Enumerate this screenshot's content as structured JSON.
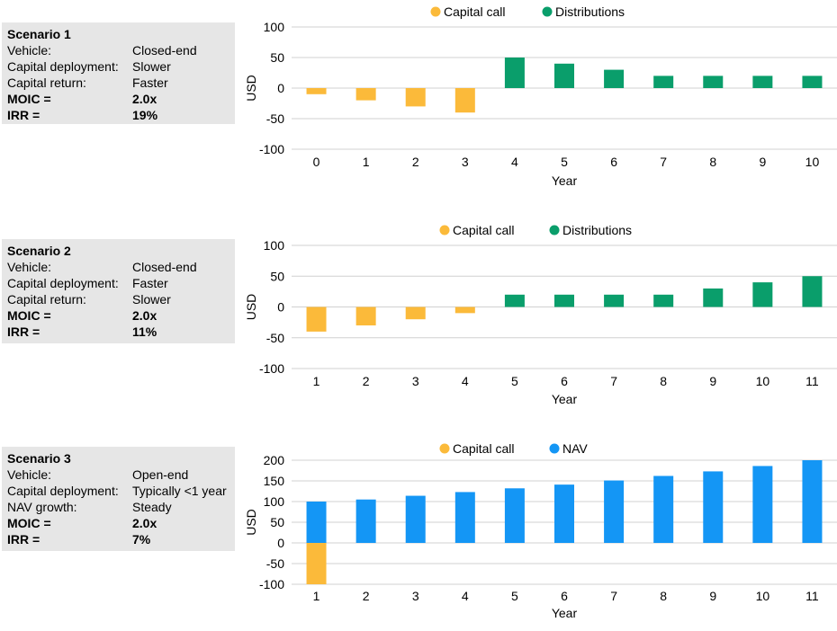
{
  "colors": {
    "capital_call": "#FBBA3A",
    "distributions": "#0A9E6B",
    "nav": "#1496F5",
    "panel_bg": "#E6E6E6"
  },
  "scenarios": [
    {
      "title": "Scenario 1",
      "rows": [
        {
          "k": "Vehicle:",
          "v": "Closed-end"
        },
        {
          "k": "Capital deployment:",
          "v": "Slower"
        },
        {
          "k": "Capital return:",
          "v": "Faster"
        }
      ],
      "moic_label": "MOIC =",
      "moic": "2.0x",
      "irr_label": "IRR =",
      "irr": "19%"
    },
    {
      "title": "Scenario 2",
      "rows": [
        {
          "k": "Vehicle:",
          "v": "Closed-end"
        },
        {
          "k": "Capital deployment:",
          "v": "Faster"
        },
        {
          "k": "Capital return:",
          "v": "Slower"
        }
      ],
      "moic_label": "MOIC =",
      "moic": "2.0x",
      "irr_label": "IRR =",
      "irr": "11%"
    },
    {
      "title": "Scenario 3",
      "rows": [
        {
          "k": "Vehicle:",
          "v": "Open-end"
        },
        {
          "k": "Capital deployment:",
          "v": "Typically <1 year"
        },
        {
          "k": "NAV growth:",
          "v": "Steady"
        }
      ],
      "moic_label": "MOIC =",
      "moic": "2.0x",
      "irr_label": "IRR =",
      "irr": "7%"
    }
  ],
  "chart_data": [
    {
      "type": "bar",
      "xlabel": "Year",
      "ylabel": "USD",
      "ylim": [
        -100,
        100
      ],
      "yticks": [
        100,
        50,
        0,
        -50,
        -100
      ],
      "categories": [
        "0",
        "1",
        "2",
        "3",
        "4",
        "5",
        "6",
        "7",
        "8",
        "9",
        "10"
      ],
      "legend_position": "top",
      "series": [
        {
          "name": "Capital call",
          "color": "#FBBA3A",
          "values": [
            -10,
            -20,
            -30,
            -40,
            0,
            0,
            0,
            0,
            0,
            0,
            0
          ]
        },
        {
          "name": "Distributions",
          "color": "#0A9E6B",
          "values": [
            0,
            0,
            0,
            0,
            50,
            40,
            30,
            20,
            20,
            20,
            20
          ]
        }
      ]
    },
    {
      "type": "bar",
      "xlabel": "Year",
      "ylabel": "USD",
      "ylim": [
        -100,
        100
      ],
      "yticks": [
        100,
        50,
        0,
        -50,
        -100
      ],
      "categories": [
        "1",
        "2",
        "3",
        "4",
        "5",
        "6",
        "7",
        "8",
        "9",
        "10",
        "11"
      ],
      "legend_position": "top",
      "series": [
        {
          "name": "Capital call",
          "color": "#FBBA3A",
          "values": [
            -40,
            -30,
            -20,
            -10,
            0,
            0,
            0,
            0,
            0,
            0,
            0
          ]
        },
        {
          "name": "Distributions",
          "color": "#0A9E6B",
          "values": [
            0,
            0,
            0,
            0,
            20,
            20,
            20,
            20,
            30,
            40,
            50
          ]
        }
      ]
    },
    {
      "type": "bar",
      "xlabel": "Year",
      "ylabel": "USD",
      "ylim": [
        -100,
        200
      ],
      "yticks": [
        200,
        150,
        100,
        50,
        0,
        -50,
        -100
      ],
      "categories": [
        "1",
        "2",
        "3",
        "4",
        "5",
        "6",
        "7",
        "8",
        "9",
        "10",
        "11"
      ],
      "legend_position": "top",
      "series": [
        {
          "name": "Capital call",
          "color": "#FBBA3A",
          "values": [
            -100,
            0,
            0,
            0,
            0,
            0,
            0,
            0,
            0,
            0,
            0
          ]
        },
        {
          "name": "NAV",
          "color": "#1496F5",
          "values": [
            100,
            105,
            114,
            123,
            132,
            141,
            151,
            162,
            173,
            186,
            200
          ]
        }
      ]
    }
  ]
}
